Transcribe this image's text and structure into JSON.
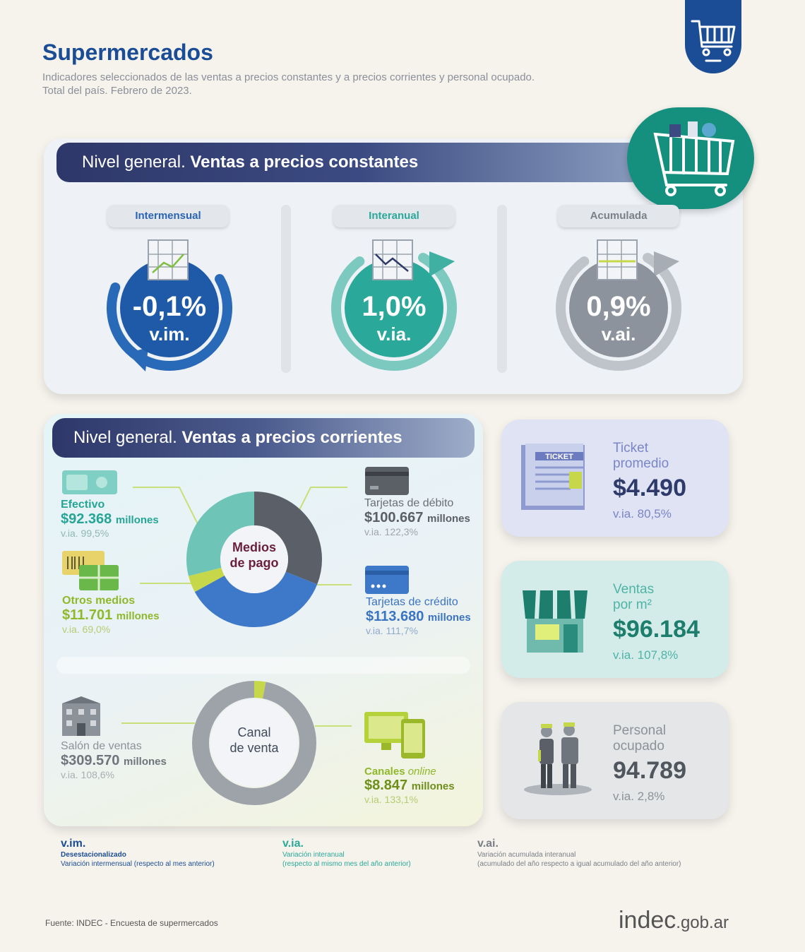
{
  "header": {
    "title": "Supermercados",
    "subtitle_line1": "Indicadores seleccionados de las ventas a precios constantes y a precios corrientes y personal ocupado.",
    "subtitle_line2": "Total del país. Febrero de 2023."
  },
  "constantes": {
    "banner_pre": "Nivel general. ",
    "banner_bold": "Ventas a precios constantes",
    "gauges": [
      {
        "label": "Intermensual",
        "value": "-0,1%",
        "unit": "v.im.",
        "color": "#1f5aa8",
        "label_color": "#2a64b3"
      },
      {
        "label": "Interanual",
        "value": "1,0%",
        "unit": "v.ia.",
        "color": "#2aa89a",
        "label_color": "#2aa89a"
      },
      {
        "label": "Acumulada",
        "value": "0,9%",
        "unit": "v.ai.",
        "color": "#8c939c",
        "label_color": "#7a8088"
      }
    ]
  },
  "corrientes": {
    "banner_pre": "Nivel general. ",
    "banner_bold": "Ventas a precios corrientes",
    "donut1_label_line1": "Medios",
    "donut1_label_line2": "de pago",
    "donut2_label_line1": "Canal",
    "donut2_label_line2": "de venta",
    "efectivo": {
      "title": "Efectivo",
      "value": "$92.368",
      "unit": "millones",
      "via": "v.ia. 99,5%",
      "share": 0.29
    },
    "otros": {
      "title": "Otros medios",
      "value": "$11.701",
      "unit": "millones",
      "via": "v.ia. 69,0%",
      "share": 0.04
    },
    "debito": {
      "title": "Tarjetas de débito",
      "value": "$100.667",
      "unit": "millones",
      "via": "v.ia. 122,3%",
      "share": 0.31
    },
    "credito": {
      "title": "Tarjetas de crédito",
      "value": "$113.680",
      "unit": "millones",
      "via": "v.ia. 111,7%",
      "share": 0.36
    },
    "salon": {
      "title": "Salón de ventas",
      "value": "$309.570",
      "unit": "millones",
      "via": "v.ia. 108,6%",
      "share": 0.97
    },
    "online": {
      "title": "Canales",
      "title_em": "online",
      "value": "$8.847",
      "unit": "millones",
      "via": "v.ia. 133,1%",
      "share": 0.03
    }
  },
  "kpis": {
    "ticket": {
      "title_line1": "Ticket",
      "title_line2": "promedio",
      "value": "$4.490",
      "via": "v.ia. 80,5%",
      "icon_text": "TICKET"
    },
    "ventas": {
      "title_line1": "Ventas",
      "title_line2": "por m²",
      "value": "$96.184",
      "via": "v.ia. 107,8%"
    },
    "personal": {
      "title_line1": "Personal",
      "title_line2": "ocupado",
      "value": "94.789",
      "via": "v.ia. 2,8%"
    }
  },
  "glossary": [
    {
      "key": "v.im.",
      "line1": "Desestacionalizado",
      "line2": "Variación intermensual (respecto al mes anterior)"
    },
    {
      "key": "v.ia.",
      "line1": "Variación interanual",
      "line2": "(respecto al mismo mes del año anterior)"
    },
    {
      "key": "v.ai.",
      "line1": "Variación acumulada interanual",
      "line2": "(acumulado del año respecto a igual acumulado del año anterior)"
    }
  ],
  "footer": {
    "source": "Fuente: INDEC - Encuesta de supermercados",
    "logo_main": "indec",
    "logo_suffix": ".gob.ar"
  }
}
